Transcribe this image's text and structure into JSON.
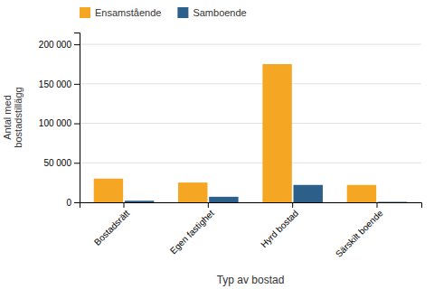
{
  "chart_data": {
    "type": "bar",
    "categories": [
      "Bostadsrätt",
      "Egen fastighet",
      "Hyrd bostad",
      "Särskilt boende"
    ],
    "series": [
      {
        "name": "Ensamstående",
        "color": "#F5A623",
        "values": [
          30000,
          25000,
          175000,
          22000
        ]
      },
      {
        "name": "Samboende",
        "color": "#2C5F8A",
        "values": [
          2000,
          7000,
          22000,
          500
        ]
      }
    ],
    "xlabel": "Typ av bostad",
    "ylabel": "Antal med\nbostadstillägg",
    "ylim": [
      0,
      215000
    ],
    "yticks": [
      0,
      {
        "value": 50000,
        "label": "50 000"
      },
      {
        "value": 100000,
        "label": "100 000"
      },
      {
        "value": 150000,
        "label": "150 000"
      },
      {
        "value": 200000,
        "label": "200 000"
      }
    ],
    "grid": true,
    "legend": "upper left"
  }
}
